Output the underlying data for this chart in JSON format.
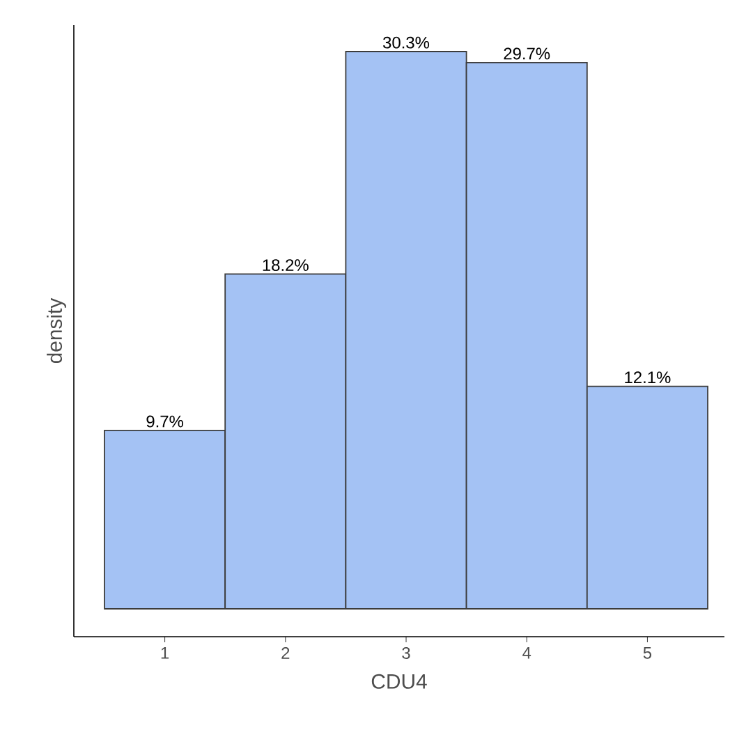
{
  "chart_data": {
    "type": "bar",
    "xlabel": "CDU4",
    "ylabel": "density",
    "categories": [
      "1",
      "2",
      "3",
      "4",
      "5"
    ],
    "values": [
      9.7,
      18.2,
      30.3,
      29.7,
      12.1
    ],
    "value_labels": [
      "9.7%",
      "18.2%",
      "30.3%",
      "29.7%",
      "12.1%"
    ],
    "color": "#a4c2f4"
  }
}
